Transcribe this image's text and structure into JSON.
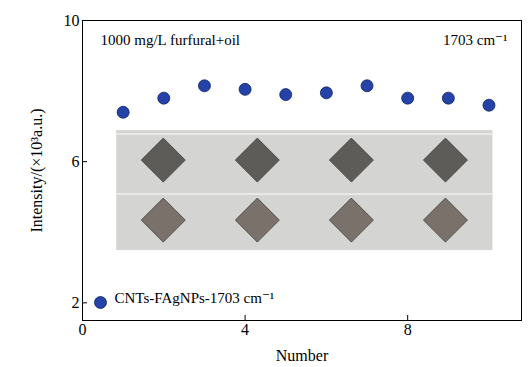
{
  "chart_data": {
    "type": "scatter",
    "x_label": "Number",
    "y_label": "Intensity/(×10³a.u.)",
    "annotations": [
      "1000 mg/L furfural+oil",
      "1703 cm⁻¹"
    ],
    "x": [
      1,
      2,
      3,
      4,
      5,
      6,
      7,
      8,
      9,
      10
    ],
    "series": [
      {
        "name": "CNTs-FAgNPs-1703 cm⁻¹",
        "color": "#2442a8",
        "marker": "circle",
        "values": [
          7.4,
          7.8,
          8.15,
          8.05,
          7.9,
          7.95,
          8.15,
          7.8,
          7.8,
          7.6
        ]
      }
    ],
    "xlim": [
      0,
      10.8
    ],
    "xticks": [
      0,
      4,
      8
    ],
    "ylim": [
      1.5,
      10
    ],
    "yticks": [
      2,
      6,
      10
    ],
    "grid": false,
    "legend": "bottom-left"
  }
}
